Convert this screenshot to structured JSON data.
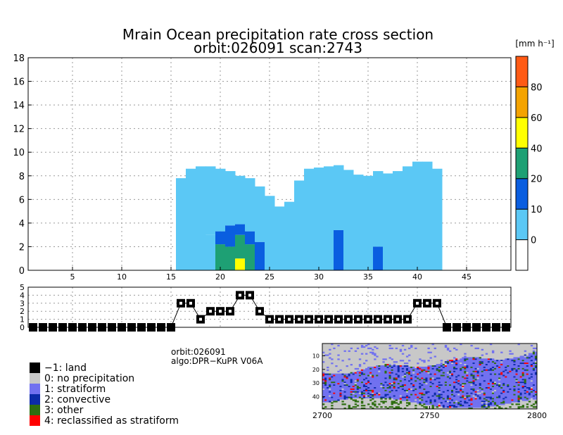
{
  "title": "Mrain Ocean precipitation rate cross section",
  "subtitle": "orbit:026091    scan:2743",
  "colorbar": {
    "unit_label": "[mm h⁻¹]",
    "tick_labels": [
      "0",
      "10",
      "20",
      "40",
      "60",
      "80"
    ],
    "colors": [
      "#ffffff",
      "#5bc8f5",
      "#0a5ee0",
      "#1ea074",
      "#ffff00",
      "#f4a300",
      "#ff5a14"
    ]
  },
  "chart_data": [
    {
      "type": "heatmap",
      "name": "cross-section",
      "title": "Mrain Ocean precipitation rate cross section",
      "subtitle": "orbit:026091    scan:2743",
      "xlim": [
        1,
        49
      ],
      "ylim": [
        0,
        18
      ],
      "x_ticks": [
        "5",
        "10",
        "15",
        "20",
        "25",
        "30",
        "35",
        "40",
        "45"
      ],
      "y_ticks": [
        "0",
        "2",
        "4",
        "6",
        "8",
        "10",
        "12",
        "14",
        "16",
        "18"
      ],
      "grid": true,
      "columns": [
        {
          "x": 16,
          "top": 7.8,
          "levels": [
            {
              "to": 7.8,
              "cat": 1
            }
          ]
        },
        {
          "x": 17,
          "top": 8.6,
          "levels": [
            {
              "to": 8.6,
              "cat": 1
            }
          ]
        },
        {
          "x": 18,
          "top": 8.8,
          "levels": [
            {
              "to": 8.8,
              "cat": 1
            }
          ]
        },
        {
          "x": 19,
          "top": 8.8,
          "levels": [
            {
              "to": 3.0,
              "cat": 1
            },
            {
              "to": 8.8,
              "cat": 1
            }
          ]
        },
        {
          "x": 20,
          "top": 8.6,
          "levels": [
            {
              "to": 2.2,
              "cat": 3
            },
            {
              "to": 3.3,
              "cat": 2
            },
            {
              "to": 8.6,
              "cat": 1
            }
          ]
        },
        {
          "x": 21,
          "top": 8.4,
          "levels": [
            {
              "to": 2.0,
              "cat": 3
            },
            {
              "to": 3.8,
              "cat": 2
            },
            {
              "to": 8.4,
              "cat": 1
            }
          ]
        },
        {
          "x": 22,
          "top": 8.0,
          "levels": [
            {
              "to": 1.0,
              "cat": 4
            },
            {
              "to": 3.0,
              "cat": 3
            },
            {
              "to": 3.9,
              "cat": 2
            },
            {
              "to": 8.0,
              "cat": 1
            }
          ]
        },
        {
          "x": 23,
          "top": 7.8,
          "levels": [
            {
              "to": 2.2,
              "cat": 3
            },
            {
              "to": 3.3,
              "cat": 2
            },
            {
              "to": 7.8,
              "cat": 1
            }
          ]
        },
        {
          "x": 24,
          "top": 7.1,
          "levels": [
            {
              "to": 2.4,
              "cat": 2
            },
            {
              "to": 7.1,
              "cat": 1
            }
          ]
        },
        {
          "x": 25,
          "top": 6.3,
          "levels": [
            {
              "to": 6.3,
              "cat": 1
            }
          ]
        },
        {
          "x": 26,
          "top": 5.4,
          "levels": [
            {
              "to": 5.4,
              "cat": 1
            }
          ]
        },
        {
          "x": 27,
          "top": 5.8,
          "levels": [
            {
              "to": 5.8,
              "cat": 1
            }
          ]
        },
        {
          "x": 28,
          "top": 7.6,
          "levels": [
            {
              "to": 7.6,
              "cat": 1
            }
          ]
        },
        {
          "x": 29,
          "top": 8.6,
          "levels": [
            {
              "to": 8.6,
              "cat": 1
            }
          ]
        },
        {
          "x": 30,
          "top": 8.7,
          "levels": [
            {
              "to": 8.7,
              "cat": 1
            }
          ]
        },
        {
          "x": 31,
          "top": 8.8,
          "levels": [
            {
              "to": 8.8,
              "cat": 1
            }
          ]
        },
        {
          "x": 32,
          "top": 8.9,
          "levels": [
            {
              "to": 3.4,
              "cat": 2
            },
            {
              "to": 8.9,
              "cat": 1
            }
          ]
        },
        {
          "x": 33,
          "top": 8.5,
          "levels": [
            {
              "to": 8.5,
              "cat": 1
            }
          ]
        },
        {
          "x": 34,
          "top": 8.1,
          "levels": [
            {
              "to": 8.1,
              "cat": 1
            }
          ]
        },
        {
          "x": 35,
          "top": 8.0,
          "levels": [
            {
              "to": 8.0,
              "cat": 1
            }
          ]
        },
        {
          "x": 36,
          "top": 8.4,
          "levels": [
            {
              "to": 2.0,
              "cat": 2
            },
            {
              "to": 8.4,
              "cat": 1
            }
          ]
        },
        {
          "x": 37,
          "top": 8.2,
          "levels": [
            {
              "to": 8.2,
              "cat": 1
            }
          ]
        },
        {
          "x": 38,
          "top": 8.4,
          "levels": [
            {
              "to": 8.4,
              "cat": 1
            }
          ]
        },
        {
          "x": 39,
          "top": 8.8,
          "levels": [
            {
              "to": 8.8,
              "cat": 1
            }
          ]
        },
        {
          "x": 40,
          "top": 9.2,
          "levels": [
            {
              "to": 9.2,
              "cat": 1
            }
          ]
        },
        {
          "x": 41,
          "top": 9.2,
          "levels": [
            {
              "to": 9.2,
              "cat": 1
            }
          ]
        },
        {
          "x": 42,
          "top": 8.6,
          "levels": [
            {
              "to": 8.6,
              "cat": 1
            }
          ]
        }
      ]
    },
    {
      "type": "line",
      "name": "precipitation-type",
      "y_ticks": [
        "0",
        "1",
        "2",
        "3",
        "4",
        "5"
      ],
      "ylim": [
        0,
        5
      ],
      "x": [
        1,
        2,
        3,
        4,
        5,
        6,
        7,
        8,
        9,
        10,
        11,
        12,
        13,
        14,
        15,
        16,
        17,
        18,
        19,
        20,
        21,
        22,
        23,
        24,
        25,
        26,
        27,
        28,
        29,
        30,
        31,
        32,
        33,
        34,
        35,
        36,
        37,
        38,
        39,
        40,
        41,
        42,
        43,
        44,
        45,
        46,
        47,
        48,
        49
      ],
      "values": [
        0,
        0,
        0,
        0,
        0,
        0,
        0,
        0,
        0,
        0,
        0,
        0,
        0,
        0,
        0,
        3,
        3,
        1,
        2,
        2,
        2,
        4,
        4,
        2,
        1,
        1,
        1,
        1,
        1,
        1,
        1,
        1,
        1,
        1,
        1,
        1,
        1,
        1,
        1,
        3,
        3,
        3,
        0,
        0,
        0,
        0,
        0,
        0,
        0
      ]
    },
    {
      "type": "heatmap",
      "name": "swath-map",
      "x_ticks": [
        "2700",
        "2750",
        "2800"
      ],
      "y_ticks": [
        "10",
        "20",
        "30",
        "40"
      ],
      "xlim": [
        2700,
        2800
      ],
      "ylim": [
        1,
        49
      ]
    }
  ],
  "info": {
    "orbit": "orbit:026091",
    "algo": "algo:DPR−KuPR V06A"
  },
  "legend": [
    {
      "label": "−1: land",
      "color": "#000000"
    },
    {
      "label": "0: no precipitation",
      "color": "#c8c8c8"
    },
    {
      "label": "1: stratiform",
      "color": "#7171f0"
    },
    {
      "label": "2: convective",
      "color": "#0c2ba8"
    },
    {
      "label": "3: other",
      "color": "#2e6e10"
    },
    {
      "label": "4: reclassified as stratiform",
      "color": "#ff0000"
    }
  ]
}
